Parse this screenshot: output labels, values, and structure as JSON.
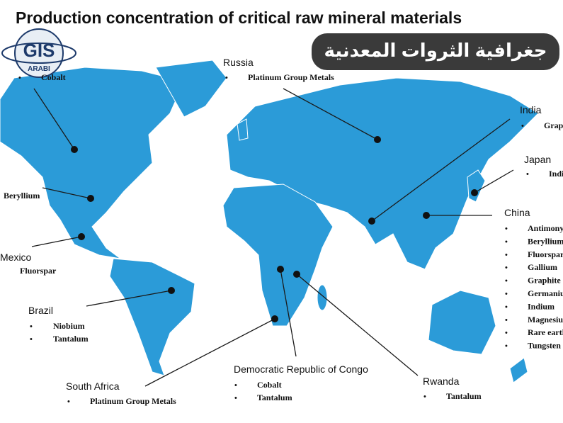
{
  "title": "Production concentration of critical raw mineral materials",
  "logo": {
    "text": "GIS",
    "subtext": "ARABI"
  },
  "banner": "جغرافية الثروات المعدنية",
  "regions": [
    {
      "minerals": [
        "Cobalt"
      ]
    },
    {
      "minerals": [
        "Beryllium"
      ]
    },
    {
      "name": "Mexico",
      "minerals": [
        "Fluorspar"
      ]
    },
    {
      "name": "Brazil",
      "minerals": [
        "Niobium",
        "Tantalum"
      ]
    },
    {
      "name": "Russia",
      "minerals": [
        "Platinum Group Metals"
      ]
    },
    {
      "name": "India",
      "minerals": [
        "Graphite"
      ]
    },
    {
      "name": "Japan",
      "minerals": [
        "Indium"
      ]
    },
    {
      "name": "China",
      "minerals": [
        "Antimony",
        "Beryllium",
        "Fluorspar",
        "Gallium",
        "Graphite",
        "Germanium",
        "Indium",
        "Magnesium",
        "Rare earths",
        "Tungsten"
      ]
    },
    {
      "name": "Democratic Republic of Congo",
      "minerals": [
        "Cobalt",
        "Tantalum"
      ]
    },
    {
      "name": "Rwanda",
      "minerals": [
        "Tantalum"
      ]
    },
    {
      "name": "South Africa",
      "minerals": [
        "Platinum Group Metals"
      ]
    }
  ]
}
